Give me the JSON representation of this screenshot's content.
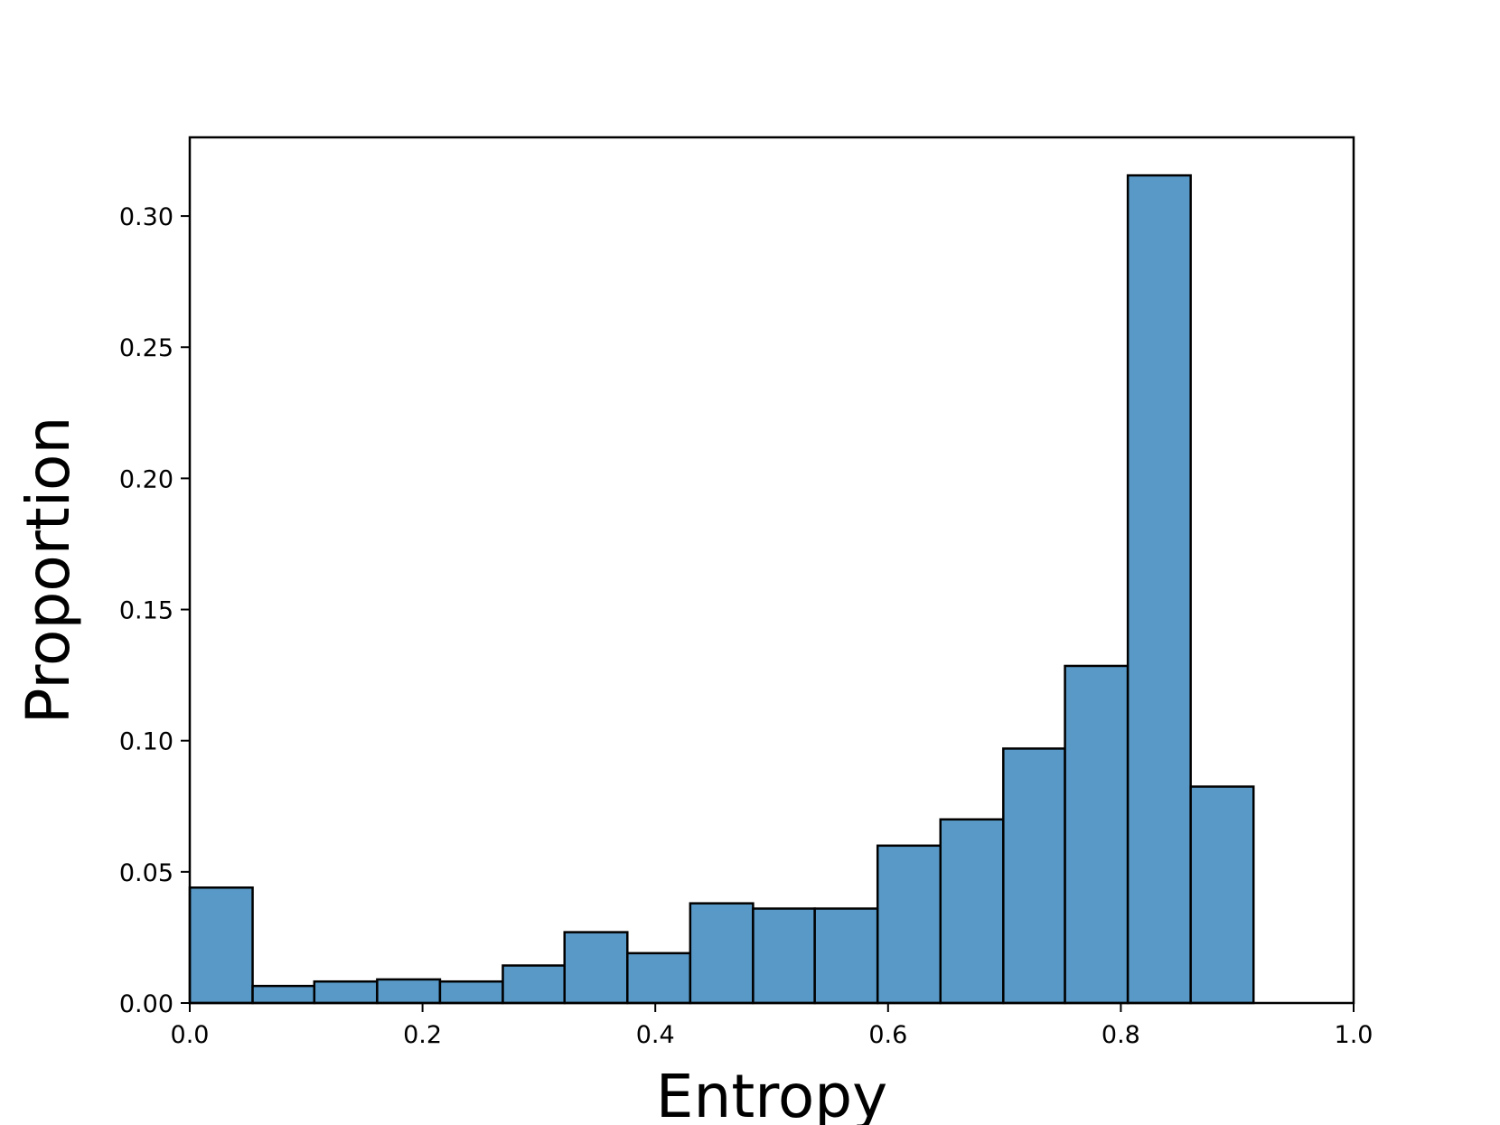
{
  "chart_data": {
    "type": "bar",
    "subtype": "histogram",
    "xlabel": "Entropy",
    "ylabel": "Proportion",
    "xlim": [
      0.0,
      1.0
    ],
    "ylim": [
      0.0,
      0.33
    ],
    "xticks": [
      "0.0",
      "0.2",
      "0.4",
      "0.6",
      "0.8",
      "1.0"
    ],
    "yticks": [
      "0.00",
      "0.05",
      "0.10",
      "0.15",
      "0.20",
      "0.25",
      "0.30"
    ],
    "grid": false,
    "bar_color": "#5899c7",
    "bins": [
      {
        "x0": 0.0,
        "x1": 0.054,
        "value": 0.044
      },
      {
        "x0": 0.054,
        "x1": 0.107,
        "value": 0.0065
      },
      {
        "x0": 0.107,
        "x1": 0.161,
        "value": 0.0082
      },
      {
        "x0": 0.161,
        "x1": 0.215,
        "value": 0.009
      },
      {
        "x0": 0.215,
        "x1": 0.269,
        "value": 0.0082
      },
      {
        "x0": 0.269,
        "x1": 0.322,
        "value": 0.0143
      },
      {
        "x0": 0.322,
        "x1": 0.376,
        "value": 0.027
      },
      {
        "x0": 0.376,
        "x1": 0.43,
        "value": 0.019
      },
      {
        "x0": 0.43,
        "x1": 0.484,
        "value": 0.038
      },
      {
        "x0": 0.484,
        "x1": 0.537,
        "value": 0.036
      },
      {
        "x0": 0.537,
        "x1": 0.591,
        "value": 0.036
      },
      {
        "x0": 0.591,
        "x1": 0.645,
        "value": 0.06
      },
      {
        "x0": 0.645,
        "x1": 0.699,
        "value": 0.07
      },
      {
        "x0": 0.699,
        "x1": 0.752,
        "value": 0.097
      },
      {
        "x0": 0.752,
        "x1": 0.806,
        "value": 0.1285
      },
      {
        "x0": 0.806,
        "x1": 0.86,
        "value": 0.3155
      },
      {
        "x0": 0.86,
        "x1": 0.914,
        "value": 0.0825
      }
    ]
  }
}
